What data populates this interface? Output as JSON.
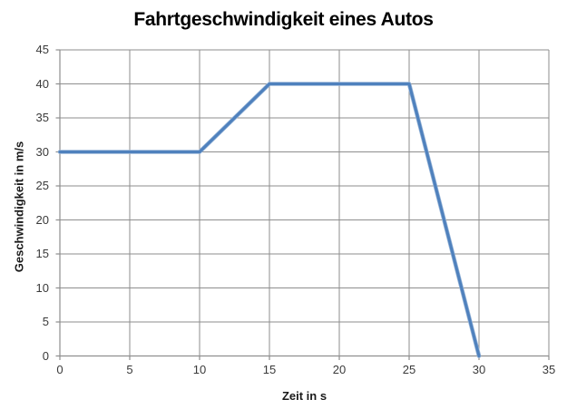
{
  "chart_data": {
    "type": "line",
    "title": "Fahrtgeschwindigkeit eines Autos",
    "xlabel": "Zeit in s",
    "ylabel": "Geschwindigkeit in m/s",
    "x": [
      0,
      10,
      15,
      25,
      30
    ],
    "y": [
      30,
      30,
      40,
      40,
      0
    ],
    "xlim": [
      0,
      35
    ],
    "ylim": [
      0,
      45
    ],
    "xticks": [
      0,
      5,
      10,
      15,
      20,
      25,
      30,
      35
    ],
    "yticks": [
      0,
      5,
      10,
      15,
      20,
      25,
      30,
      35,
      40,
      45
    ],
    "grid": true,
    "legend": false,
    "line_color": "#4F81BD",
    "line_halo_color": "#95B3D7",
    "gridline_color": "#8E8E8E",
    "axis_color": "#8E8E8E",
    "tick_label_color": "#3a3a3a",
    "title_color": "#000000"
  }
}
